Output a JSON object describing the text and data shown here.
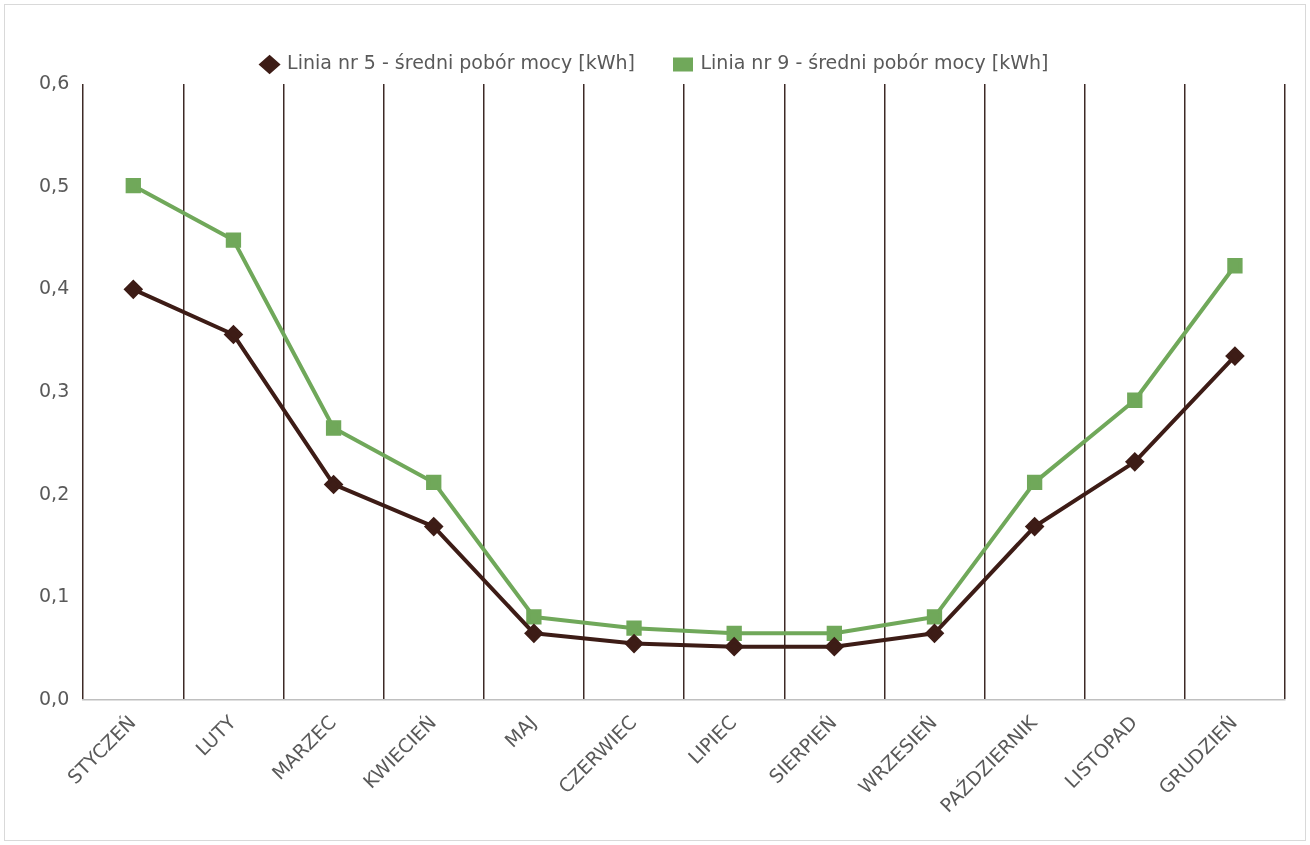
{
  "chart_data": {
    "type": "line",
    "categories": [
      "STYCZEŃ",
      "LUTY",
      "MARZEC",
      "KWIECIEŃ",
      "MAJ",
      "CZERWIEC",
      "LIPIEC",
      "SIERPIEŃ",
      "WRZESIEŃ",
      "PAŹDZIERNIK",
      "LISTOPAD",
      "GRUDZIEŃ"
    ],
    "series": [
      {
        "name": "Linia nr 5 - średni pobór mocy [kWh]",
        "color": "#3d1c16",
        "marker": "diamond",
        "values": [
          0.4,
          0.356,
          0.21,
          0.169,
          0.065,
          0.055,
          0.052,
          0.052,
          0.065,
          0.169,
          0.232,
          0.335
        ]
      },
      {
        "name": "Linia nr 9 - średni pobór mocy [kWh]",
        "color": "#70a85a",
        "marker": "square",
        "values": [
          0.501,
          0.448,
          0.265,
          0.212,
          0.081,
          0.07,
          0.065,
          0.065,
          0.081,
          0.212,
          0.292,
          0.423
        ]
      }
    ],
    "ylim": [
      0,
      0.6
    ],
    "yticks": [
      {
        "value": 0,
        "label": "0,0"
      },
      {
        "value": 0.1,
        "label": "0,1"
      },
      {
        "value": 0.2,
        "label": "0,2"
      },
      {
        "value": 0.3,
        "label": "0,3"
      },
      {
        "value": 0.4,
        "label": "0,4"
      },
      {
        "value": 0.5,
        "label": "0,5"
      },
      {
        "value": 0.6,
        "label": "0,6"
      }
    ],
    "grid": "x",
    "legend": "top",
    "line_style": "solid"
  }
}
